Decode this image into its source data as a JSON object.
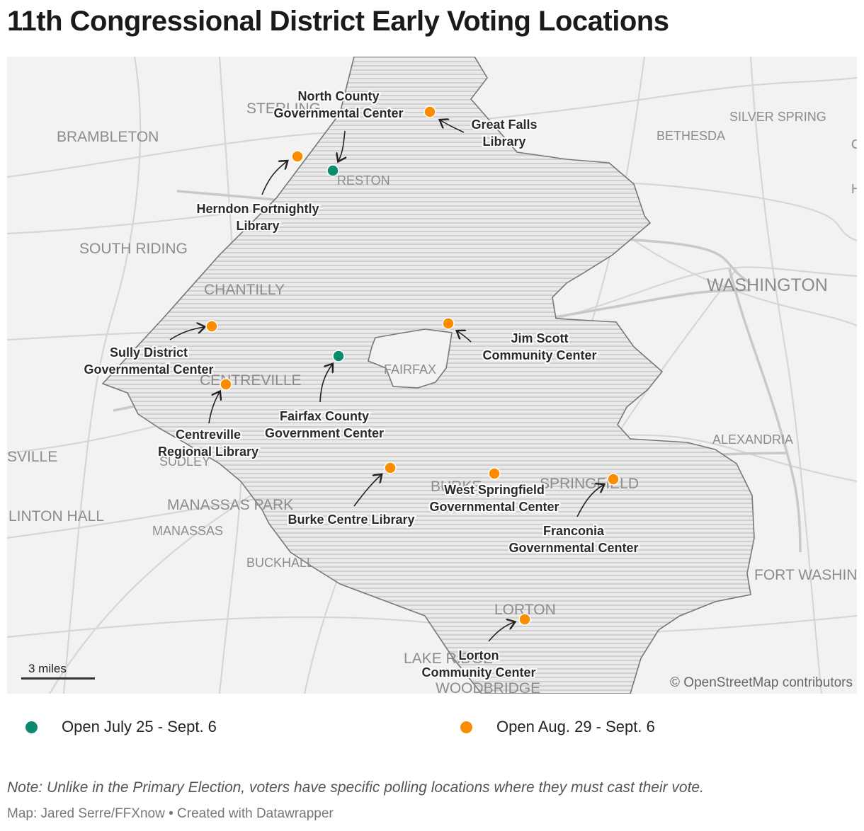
{
  "title": "11th Congressional District Early Voting Locations",
  "colors": {
    "green": "#0b8a6e",
    "orange": "#fb8c00",
    "map_bg": "#f2f2f2",
    "district_fill": "#dcdcdc",
    "roads": "#d3d3d3"
  },
  "place_labels": [
    {
      "text": "BRAMBLETON",
      "size": "large"
    },
    {
      "text": "STERLING",
      "size": "large"
    },
    {
      "text": "RESTON",
      "size": "small"
    },
    {
      "text": "SILVER SPRING",
      "size": "small"
    },
    {
      "text": "BETHESDA",
      "size": "small"
    },
    {
      "text": "SOUTH RIDING",
      "size": "large"
    },
    {
      "text": "CHANTILLY",
      "size": "large"
    },
    {
      "text": "WASHINGTON",
      "size": "xlarge"
    },
    {
      "text": "CENTREVILLE",
      "size": "large"
    },
    {
      "text": "FAIRFAX",
      "size": "small"
    },
    {
      "text": "SVILLE",
      "size": "large"
    },
    {
      "text": "SUDLEY",
      "size": "small"
    },
    {
      "text": "ALEXANDRIA",
      "size": "small"
    },
    {
      "text": "MANASSAS PARK",
      "size": "large"
    },
    {
      "text": "BURKE",
      "size": "large"
    },
    {
      "text": "SPRINGFIELD",
      "size": "large"
    },
    {
      "text": "LINTON HALL",
      "size": "large"
    },
    {
      "text": "MANASSAS",
      "size": "small"
    },
    {
      "text": "BUCKHALL",
      "size": "small"
    },
    {
      "text": "FORT WASHIN",
      "size": "large"
    },
    {
      "text": "LORTON",
      "size": "large"
    },
    {
      "text": "LAKE RIDGE",
      "size": "large"
    },
    {
      "text": "WOODBRIDGE",
      "size": "large"
    },
    {
      "text": "C",
      "size": "small"
    },
    {
      "text": "H",
      "size": "small"
    }
  ],
  "locations": [
    {
      "name_lines": [
        "North County",
        "Governmental Center"
      ],
      "period": "early"
    },
    {
      "name_lines": [
        "Great Falls",
        "Library"
      ],
      "period": "late"
    },
    {
      "name_lines": [
        "Herndon Fortnightly",
        "Library"
      ],
      "period": "late"
    },
    {
      "name_lines": [
        "Sully District",
        "Governmental Center"
      ],
      "period": "late"
    },
    {
      "name_lines": [
        "Jim Scott",
        "Community Center"
      ],
      "period": "late"
    },
    {
      "name_lines": [
        "Fairfax County",
        "Government Center"
      ],
      "period": "early"
    },
    {
      "name_lines": [
        "Centreville",
        "Regional Library"
      ],
      "period": "late"
    },
    {
      "name_lines": [
        "Burke Centre Library"
      ],
      "period": "late"
    },
    {
      "name_lines": [
        "West Springfield",
        "Governmental Center"
      ],
      "period": "late"
    },
    {
      "name_lines": [
        "Franconia",
        "Governmental Center"
      ],
      "period": "late"
    },
    {
      "name_lines": [
        "Lorton",
        "Community Center"
      ],
      "period": "late"
    }
  ],
  "scale_label": "3 miles",
  "attribution": "© OpenStreetMap contributors",
  "legend": {
    "early": {
      "label": "Open July 25 - Sept. 6",
      "color": "#0b8a6e"
    },
    "late": {
      "label": "Open Aug. 29 - Sept. 6",
      "color": "#fb8c00"
    }
  },
  "note": "Note: Unlike in the Primary Election, voters have specific polling locations where they must cast their vote.",
  "credit": "Map: Jared Serre/FFXnow • Created with Datawrapper"
}
